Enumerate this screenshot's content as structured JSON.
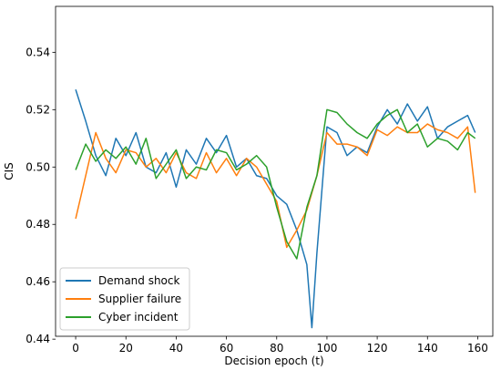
{
  "chart_data": {
    "type": "line",
    "xlabel": "Decision epoch (t)",
    "ylabel": "CIS",
    "xlim": [
      -8,
      166
    ],
    "ylim": [
      0.441,
      0.556
    ],
    "xticks": [
      0,
      20,
      40,
      60,
      80,
      100,
      120,
      140,
      160
    ],
    "yticks": [
      0.44,
      0.46,
      0.48,
      0.5,
      0.52,
      0.54
    ],
    "grid": false,
    "legend_position": "lower-left",
    "series": [
      {
        "name": "Demand shock",
        "color": "#1f77b4",
        "x": [
          0,
          4,
          8,
          12,
          16,
          20,
          24,
          28,
          32,
          36,
          40,
          44,
          48,
          52,
          56,
          60,
          64,
          68,
          72,
          76,
          80,
          84,
          88,
          92,
          94,
          96,
          100,
          104,
          108,
          112,
          116,
          120,
          124,
          128,
          132,
          136,
          140,
          144,
          148,
          152,
          156,
          159
        ],
        "y": [
          0.527,
          0.516,
          0.504,
          0.497,
          0.51,
          0.504,
          0.512,
          0.5,
          0.498,
          0.505,
          0.493,
          0.506,
          0.501,
          0.51,
          0.505,
          0.511,
          0.5,
          0.503,
          0.497,
          0.496,
          0.49,
          0.487,
          0.478,
          0.466,
          0.444,
          0.47,
          0.514,
          0.512,
          0.504,
          0.507,
          0.505,
          0.514,
          0.52,
          0.515,
          0.522,
          0.516,
          0.521,
          0.51,
          0.514,
          0.516,
          0.518,
          0.512
        ]
      },
      {
        "name": "Supplier failure",
        "color": "#ff7f0e",
        "x": [
          0,
          4,
          8,
          12,
          16,
          20,
          24,
          28,
          32,
          36,
          40,
          44,
          48,
          52,
          56,
          60,
          64,
          68,
          72,
          76,
          80,
          84,
          88,
          92,
          96,
          100,
          104,
          108,
          112,
          116,
          120,
          124,
          128,
          132,
          136,
          140,
          144,
          148,
          152,
          156,
          159
        ],
        "y": [
          0.482,
          0.497,
          0.512,
          0.503,
          0.498,
          0.506,
          0.505,
          0.5,
          0.503,
          0.498,
          0.505,
          0.498,
          0.496,
          0.505,
          0.498,
          0.503,
          0.497,
          0.503,
          0.5,
          0.494,
          0.488,
          0.472,
          0.478,
          0.485,
          0.497,
          0.512,
          0.508,
          0.508,
          0.507,
          0.504,
          0.513,
          0.511,
          0.514,
          0.512,
          0.512,
          0.515,
          0.513,
          0.512,
          0.51,
          0.514,
          0.491
        ]
      },
      {
        "name": "Cyber incident",
        "color": "#2ca02c",
        "x": [
          0,
          4,
          8,
          12,
          16,
          20,
          24,
          28,
          32,
          36,
          40,
          44,
          48,
          52,
          56,
          60,
          64,
          68,
          72,
          76,
          80,
          84,
          88,
          92,
          96,
          100,
          104,
          108,
          112,
          116,
          120,
          124,
          128,
          132,
          136,
          140,
          144,
          148,
          152,
          156,
          159
        ],
        "y": [
          0.499,
          0.508,
          0.502,
          0.506,
          0.503,
          0.507,
          0.501,
          0.51,
          0.496,
          0.501,
          0.506,
          0.496,
          0.5,
          0.499,
          0.506,
          0.505,
          0.499,
          0.501,
          0.504,
          0.5,
          0.486,
          0.474,
          0.468,
          0.486,
          0.497,
          0.52,
          0.519,
          0.515,
          0.512,
          0.51,
          0.515,
          0.518,
          0.52,
          0.512,
          0.515,
          0.507,
          0.51,
          0.509,
          0.506,
          0.512,
          0.51
        ]
      }
    ]
  }
}
